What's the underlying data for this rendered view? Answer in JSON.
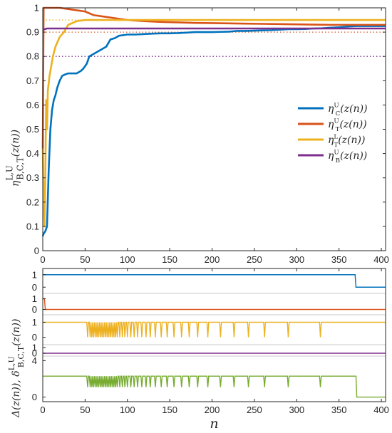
{
  "chart_data": [
    {
      "type": "line",
      "ylabel": "η^{L,U}_{B,C,T}(z(n))",
      "xlim": [
        0,
        405
      ],
      "ylim": [
        0,
        1
      ],
      "xticks": [
        0,
        50,
        100,
        150,
        200,
        250,
        300,
        350,
        400
      ],
      "yticks": [
        0,
        0.1,
        0.2,
        0.3,
        0.4,
        0.5,
        0.6,
        0.7,
        0.8,
        0.9,
        1
      ],
      "grid": false,
      "legend": "right",
      "series": [
        {
          "name": "η^U_C(z(n))",
          "color": "#0072BD",
          "x": [
            0,
            1,
            3,
            4,
            5,
            7,
            9,
            11,
            13,
            15,
            17,
            20,
            23,
            26,
            30,
            35,
            40,
            45,
            48,
            50,
            52,
            55,
            60,
            65,
            70,
            75,
            80,
            85,
            90,
            100,
            110,
            120,
            130,
            140,
            150,
            160,
            170,
            180,
            190,
            200,
            210,
            220,
            230,
            240,
            250,
            260,
            270,
            280,
            290,
            300,
            310,
            320,
            330,
            340,
            350,
            360,
            370,
            380,
            390,
            400,
            405
          ],
          "y": [
            0.06,
            0.07,
            0.08,
            0.09,
            0.1,
            0.33,
            0.5,
            0.58,
            0.62,
            0.64,
            0.67,
            0.7,
            0.72,
            0.725,
            0.73,
            0.73,
            0.73,
            0.74,
            0.75,
            0.76,
            0.77,
            0.8,
            0.81,
            0.82,
            0.83,
            0.84,
            0.87,
            0.875,
            0.885,
            0.89,
            0.89,
            0.892,
            0.894,
            0.895,
            0.895,
            0.896,
            0.898,
            0.9,
            0.9,
            0.9,
            0.901,
            0.902,
            0.905,
            0.905,
            0.906,
            0.907,
            0.908,
            0.91,
            0.912,
            0.912,
            0.913,
            0.915,
            0.916,
            0.918,
            0.92,
            0.923,
            0.925,
            0.925,
            0.925,
            0.925,
            0.925
          ]
        },
        {
          "name": "η^U_T(z(n))",
          "color": "#D95319",
          "x": [
            0,
            1,
            3,
            5,
            10,
            20,
            30,
            40,
            50,
            60,
            70,
            80,
            90,
            100,
            120,
            140,
            160,
            180,
            200,
            220,
            240,
            260,
            280,
            300,
            320,
            340,
            360,
            380,
            400,
            405
          ],
          "y": [
            0.42,
            1.0,
            1.0,
            1.0,
            1.0,
            1.0,
            0.995,
            0.99,
            0.985,
            0.97,
            0.965,
            0.96,
            0.955,
            0.95,
            0.945,
            0.942,
            0.94,
            0.938,
            0.937,
            0.936,
            0.935,
            0.934,
            0.933,
            0.932,
            0.931,
            0.93,
            0.93,
            0.93,
            0.93,
            0.93
          ]
        },
        {
          "name": "η^L_T(z(n))",
          "color": "#EDB120",
          "x": [
            0,
            1,
            2,
            3,
            4,
            5,
            6,
            8,
            10,
            12,
            15,
            20,
            25,
            30,
            40,
            50,
            60,
            70,
            80,
            100,
            150,
            200,
            250,
            300,
            350,
            400,
            405
          ],
          "y": [
            0.42,
            0.2,
            0.1,
            0.3,
            0.62,
            0.5,
            0.66,
            0.72,
            0.76,
            0.8,
            0.84,
            0.88,
            0.9,
            0.93,
            0.945,
            0.95,
            0.95,
            0.95,
            0.95,
            0.95,
            0.95,
            0.95,
            0.95,
            0.95,
            0.95,
            0.95,
            0.95
          ]
        },
        {
          "name": "η^U_B(z(n))",
          "color": "#7E2F8E",
          "x": [
            0,
            5,
            405
          ],
          "y": [
            0.91,
            0.915,
            0.915
          ]
        }
      ],
      "reference_lines": [
        {
          "y": 0.95,
          "color": "#EDB120"
        },
        {
          "y": 0.9,
          "color": "#D95319"
        },
        {
          "y": 0.8,
          "color": "#7E2F8E"
        }
      ]
    },
    {
      "type": "line",
      "xlabel": "n",
      "ylabel": "Δ(z(n)),  δ^{L,U}_{B,C,T}(z(n))",
      "xlim": [
        0,
        405
      ],
      "xticks": [
        0,
        50,
        100,
        150,
        200,
        250,
        300,
        350,
        400
      ],
      "grid": false,
      "legend": "none",
      "panels": [
        {
          "name": "δ^U_C",
          "color": "#0072BD",
          "yticks": [
            0,
            1
          ],
          "ylim": [
            -0.5,
            1.5
          ],
          "steps": [
            [
              0,
              1
            ],
            [
              369,
              1
            ],
            [
              370,
              0
            ],
            [
              405,
              0
            ]
          ]
        },
        {
          "name": "δ^U_T",
          "color": "#D95319",
          "yticks": [
            0,
            1
          ],
          "ylim": [
            -0.5,
            1.5
          ],
          "steps": [
            [
              0,
              1
            ],
            [
              2,
              1
            ],
            [
              3,
              0
            ],
            [
              405,
              0
            ]
          ]
        },
        {
          "name": "δ^L_T",
          "color": "#EDB120",
          "yticks": [
            0,
            1
          ],
          "ylim": [
            -0.5,
            1.5
          ],
          "base": 1,
          "pulse": 0,
          "pulse_positions": [
            53,
            56,
            58,
            60,
            62,
            64,
            66,
            68,
            70,
            72,
            74,
            76,
            78,
            80,
            82,
            84,
            86,
            88,
            91,
            94,
            97,
            100,
            104,
            108,
            112,
            117,
            122,
            127,
            133,
            140,
            147,
            155,
            164,
            173,
            183,
            195,
            210,
            226,
            243,
            262,
            290,
            328
          ]
        },
        {
          "name": "δ^U_B",
          "color": "#7E2F8E",
          "yticks": [
            0,
            1
          ],
          "ylim": [
            -0.5,
            1.5
          ],
          "steps": [
            [
              0,
              0
            ],
            [
              405,
              0
            ]
          ]
        },
        {
          "name": "Δ",
          "color": "#77AC30",
          "yticks": [
            0,
            4
          ],
          "ylim": [
            -0.5,
            4.5
          ],
          "base": 2.3,
          "pulse": 1.1,
          "base_before": 2.3,
          "drop_at": 370,
          "drop_value": 0,
          "pulse_positions": [
            53,
            56,
            58,
            60,
            62,
            64,
            66,
            68,
            70,
            72,
            74,
            76,
            78,
            80,
            82,
            84,
            86,
            88,
            91,
            94,
            97,
            100,
            104,
            108,
            112,
            117,
            122,
            127,
            133,
            140,
            147,
            155,
            164,
            173,
            183,
            195,
            210,
            226,
            243,
            262,
            290,
            328
          ]
        }
      ]
    }
  ]
}
